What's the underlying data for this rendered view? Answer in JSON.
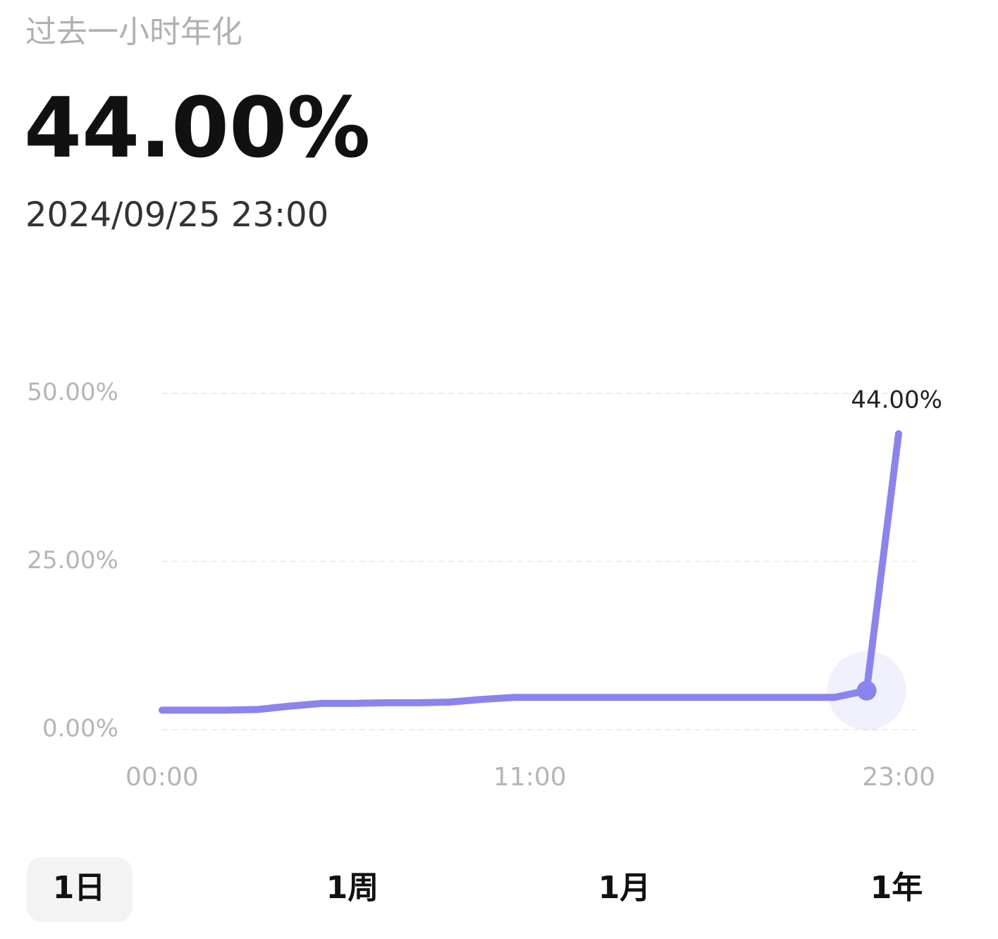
{
  "header": {
    "label": "过去一小时年化",
    "value": "44.00%",
    "timestamp": "2024/09/25 23:00"
  },
  "chart_data": {
    "type": "line",
    "x": [
      0,
      1,
      2,
      3,
      4,
      5,
      6,
      7,
      8,
      9,
      10,
      11,
      12,
      13,
      14,
      15,
      16,
      17,
      18,
      19,
      20,
      21,
      22,
      23
    ],
    "series": [
      {
        "color": "#8a84ee",
        "values": [
          2.9,
          2.9,
          2.9,
          3.0,
          3.5,
          3.9,
          3.9,
          4.0,
          4.0,
          4.1,
          4.5,
          4.8,
          4.8,
          4.8,
          4.8,
          4.8,
          4.8,
          4.8,
          4.8,
          4.8,
          4.8,
          4.8,
          5.8,
          44
        ]
      }
    ],
    "xlim": [
      0,
      23
    ],
    "xticks": [
      {
        "value": 0,
        "label": "00:00"
      },
      {
        "value": 11,
        "label": "11:00"
      },
      {
        "value": 23,
        "label": "23:00"
      }
    ],
    "ylim": [
      0,
      50
    ],
    "yticks": [
      {
        "value": 0,
        "label": "0.00%"
      },
      {
        "value": 25,
        "label": "25.00%"
      },
      {
        "value": 50,
        "label": "50.00%"
      }
    ],
    "grid": true,
    "highlight_index": 22,
    "annotations": [
      {
        "x": 23,
        "y": 44,
        "text": "44.00%"
      }
    ]
  },
  "tabs": {
    "items": [
      "1日",
      "1周",
      "1月",
      "1年"
    ],
    "selected": 0
  }
}
